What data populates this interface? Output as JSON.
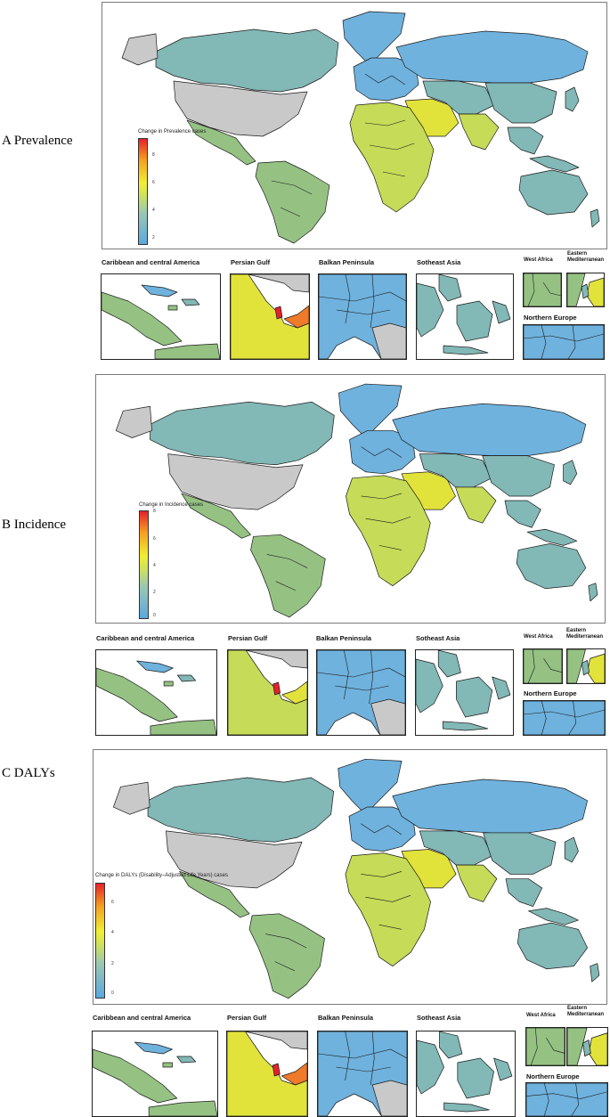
{
  "colors": {
    "blue": "#6fb2dd",
    "teal": "#82b8b6",
    "green": "#95c283",
    "yellowgreen": "#c6db57",
    "yellow": "#e2e33a",
    "orange": "#ef7a2a",
    "red": "#e3222b",
    "nodata": "#c9c9c9"
  },
  "inset_titles": {
    "caribbean": "Caribbean and central America",
    "persian": "Persian Gulf",
    "balkan": "Balkan Peninsula",
    "southeast": "Sotheast Asia",
    "west_africa": "West Africa",
    "eastern_med_1": "Eastern",
    "eastern_med_2": "Mediterranean",
    "northern_europe": "Northern Europe"
  },
  "panels": [
    {
      "label": "A Prevalence",
      "legend_title": "Change in Prevalence cases",
      "legend_ticks": [
        "8",
        "6",
        "4",
        "2",
        "0"
      ]
    },
    {
      "label": "B Incidence",
      "legend_title": "Change in Incidence cases",
      "legend_ticks": [
        "8",
        "6",
        "4",
        "2",
        "0"
      ]
    },
    {
      "label": "C DALYs",
      "legend_title": "Change in DALYs (Disability–Adjusted Life Years) cases",
      "legend_ticks": [
        "6",
        "4",
        "2",
        "0"
      ]
    }
  ]
}
